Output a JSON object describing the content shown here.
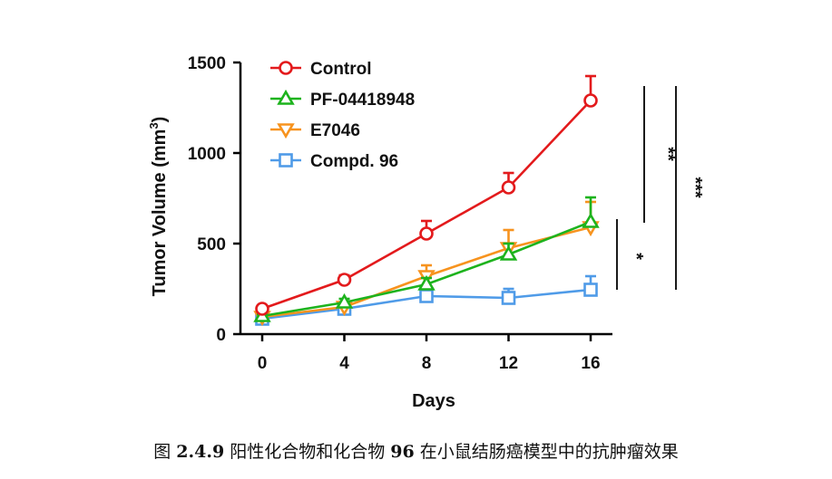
{
  "chart_data": {
    "type": "line",
    "x": [
      0,
      4,
      8,
      12,
      16
    ],
    "xlabel": "Days",
    "ylabel": "Tumor Volume (mm",
    "ylabel_sup": "3",
    "ylabel_close": ")",
    "xlim": [
      0,
      16
    ],
    "ylim": [
      0,
      1500
    ],
    "xticks": [
      "0",
      "4",
      "8",
      "12",
      "16"
    ],
    "yticks": [
      "0",
      "500",
      "1000",
      "1500"
    ],
    "grid": false,
    "legend_position": "top-left",
    "series": [
      {
        "name": "Control",
        "color": "#e31a1c",
        "marker": "circle",
        "values": [
          140,
          300,
          555,
          810,
          1290
        ],
        "errors": [
          15,
          25,
          70,
          80,
          135
        ]
      },
      {
        "name": "PF-04418948",
        "color": "#1db31d",
        "marker": "triangle-up",
        "values": [
          100,
          175,
          275,
          440,
          620
        ],
        "errors": [
          10,
          20,
          35,
          60,
          135
        ]
      },
      {
        "name": "E7046",
        "color": "#f7931e",
        "marker": "triangle-down",
        "values": [
          95,
          150,
          320,
          475,
          590
        ],
        "errors": [
          10,
          15,
          60,
          100,
          140
        ]
      },
      {
        "name": "Compd. 96",
        "color": "#4f9be8",
        "marker": "square",
        "values": [
          85,
          140,
          210,
          200,
          245
        ],
        "errors": [
          10,
          15,
          30,
          50,
          75
        ]
      }
    ],
    "significance": [
      {
        "label": "*"
      },
      {
        "label": "**"
      },
      {
        "label": "***"
      }
    ]
  },
  "caption": {
    "prefix": "图 ",
    "number": "2.4.9",
    "text_a": " 阳性化合物和化合物 ",
    "compound": "96",
    "text_b": " 在小鼠结肠癌模型中的抗肿瘤效果"
  }
}
